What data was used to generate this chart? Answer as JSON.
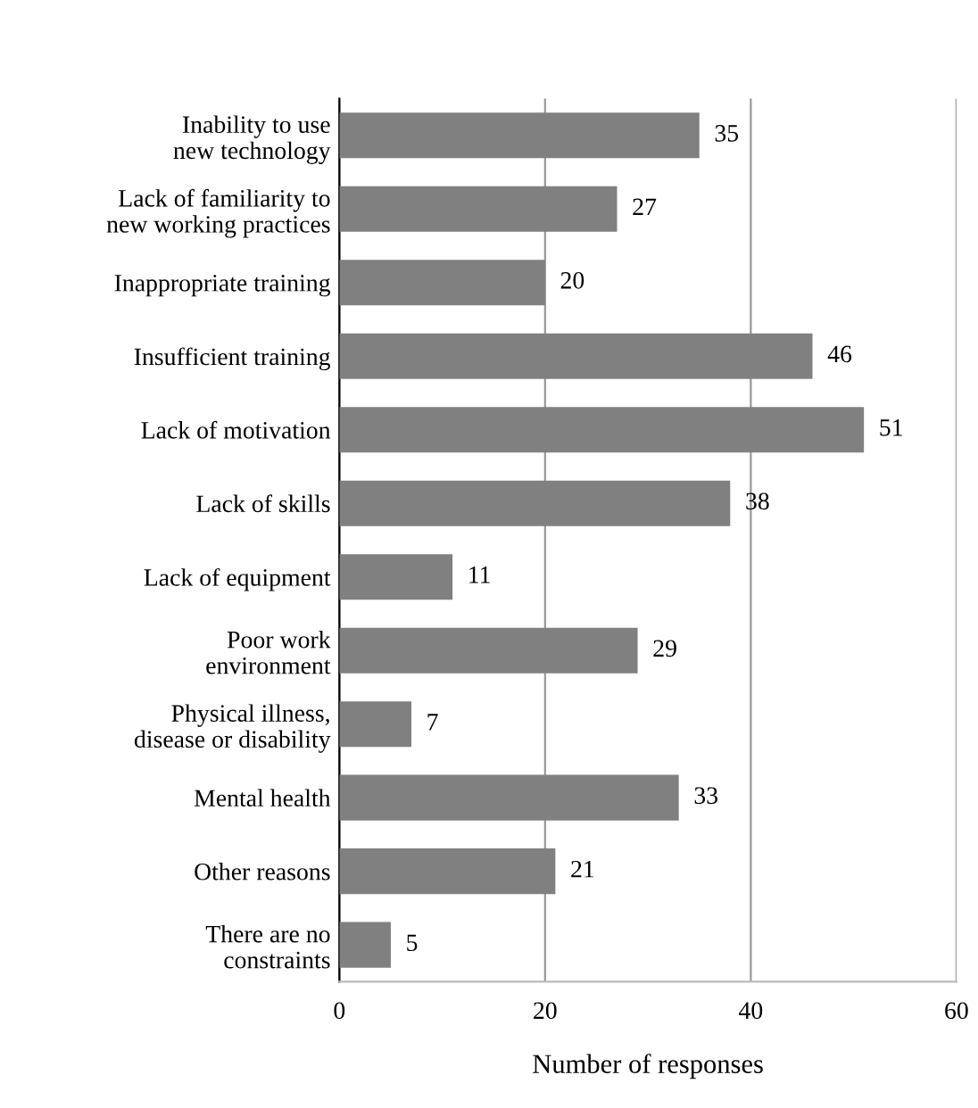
{
  "chart_data": {
    "type": "bar",
    "orientation": "horizontal",
    "xlabel": "Number of responses",
    "categories": [
      "Inability to use\nnew technology",
      "Lack of familiarity to\nnew working practices",
      "Inappropriate training",
      "Insufficient training",
      "Lack of motivation",
      "Lack of skills",
      "Lack of equipment",
      "Poor work\nenvironment",
      "Physical illness,\ndisease or disability",
      "Mental health",
      "Other reasons",
      "There are no\nconstraints"
    ],
    "values": [
      35,
      27,
      20,
      46,
      51,
      38,
      11,
      29,
      7,
      33,
      21,
      5
    ],
    "color": "#808080",
    "xlim": [
      0,
      60
    ],
    "xticks": [
      0,
      20,
      40,
      60
    ],
    "grid": "x",
    "data_labels": true
  }
}
